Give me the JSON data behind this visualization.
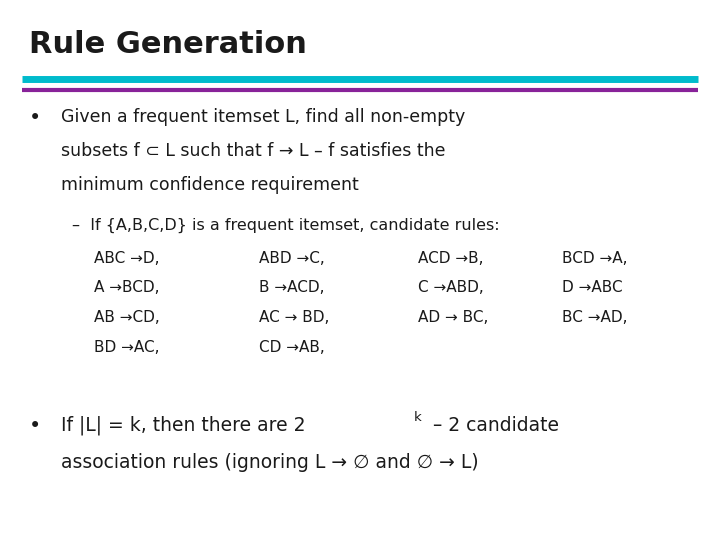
{
  "title": "Rule Generation",
  "title_fontsize": 22,
  "title_fontweight": "bold",
  "bg_color": "#ffffff",
  "line1_color": "#00BBCC",
  "line2_color": "#882299",
  "bullet_color": "#1a1a1a",
  "text_color": "#1a1a1a",
  "bullet1_line1": "Given a frequent itemset L, find all non-empty",
  "bullet1_line2": "subsets f ⊂ L such that f → L – f satisfies the",
  "bullet1_line3": "minimum confidence requirement",
  "sub_bullet": "–  If {A,B,C,D} is a frequent itemset, candidate rules:",
  "rules_col1": [
    "ABC →D,",
    "A →BCD,",
    "AB →CD,",
    "BD →AC,"
  ],
  "rules_col2": [
    "ABD →C,",
    "B →ACD,",
    "AC → BD,",
    "CD →AB,"
  ],
  "rules_col3": [
    "ACD →B,",
    "C →ABD,",
    "AD → BC,"
  ],
  "rules_col4": [
    "BCD →A,",
    "D →ABC",
    "BC →AD,"
  ],
  "bullet2_line1_pre": "If |L| = k, then there are 2",
  "bullet2_line1_sup": "k",
  "bullet2_line1_post": " – 2 candidate",
  "bullet2_line2": "association rules (ignoring L → ∅ and ∅ → L)"
}
